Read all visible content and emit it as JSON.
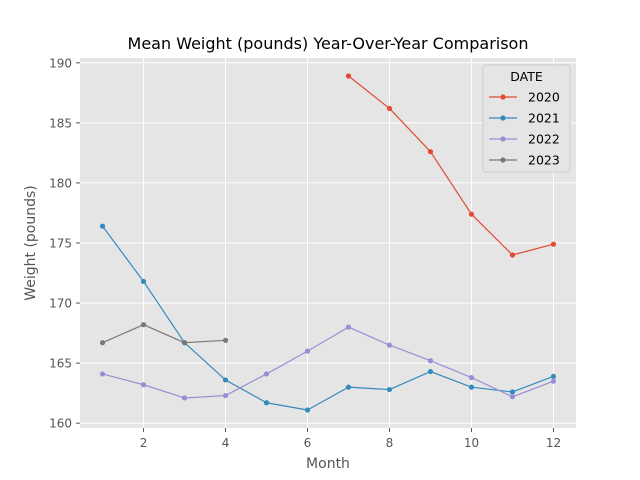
{
  "chart_data": {
    "type": "line",
    "title": "Mean Weight (pounds) Year-Over-Year Comparison",
    "xlabel": "Month",
    "ylabel": "Weight (pounds)",
    "xlim": [
      0.45,
      12.55
    ],
    "ylim": [
      159.6,
      190.4
    ],
    "xticks": [
      2,
      4,
      6,
      8,
      10,
      12
    ],
    "yticks": [
      160,
      165,
      170,
      175,
      180,
      185,
      190
    ],
    "grid": true,
    "legend_title": "DATE",
    "legend_position": "top-right",
    "series": [
      {
        "name": "2020",
        "color": "#E24A33",
        "x": [
          7,
          8,
          9,
          10,
          11,
          12
        ],
        "values": [
          188.9,
          186.2,
          182.6,
          177.4,
          174.0,
          174.9
        ]
      },
      {
        "name": "2021",
        "color": "#348ABD",
        "x": [
          1,
          2,
          3,
          4,
          5,
          6,
          7,
          8,
          9,
          10,
          11,
          12
        ],
        "values": [
          176.4,
          171.8,
          166.7,
          163.6,
          161.7,
          161.1,
          163.0,
          162.8,
          164.3,
          163.0,
          162.6,
          163.9
        ]
      },
      {
        "name": "2022",
        "color": "#988ED5",
        "x": [
          1,
          2,
          3,
          4,
          5,
          6,
          7,
          8,
          9,
          10,
          11,
          12
        ],
        "values": [
          164.1,
          163.2,
          162.1,
          162.3,
          164.1,
          166.0,
          168.0,
          166.5,
          165.2,
          163.8,
          162.2,
          163.5
        ]
      },
      {
        "name": "2023",
        "color": "#777777",
        "x": [
          1,
          2,
          3,
          4
        ],
        "values": [
          166.7,
          168.2,
          166.7,
          166.9
        ]
      }
    ]
  }
}
